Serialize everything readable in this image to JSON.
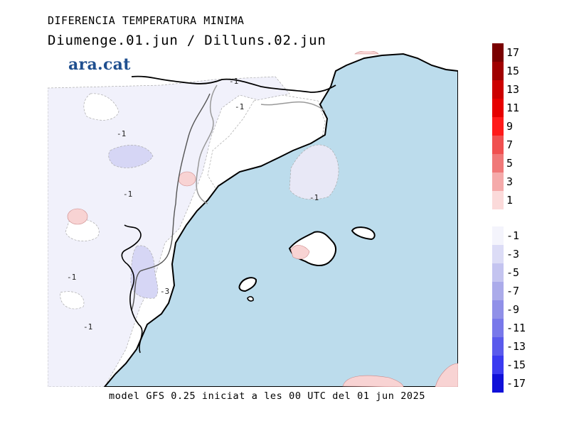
{
  "header": {
    "title": "DIFERENCIA TEMPERATURA MINIMA",
    "subtitle": "Diumenge.01.jun / Dilluns.02.jun",
    "brand": "ara.cat"
  },
  "footer": {
    "model_info": "model GFS 0.25 iniciat a les 00 UTC del 01 jun 2025"
  },
  "map": {
    "sea_color": "#bcdcec",
    "land_color": "#ffffff",
    "contour_labels": [
      "-1",
      "-1",
      "-1",
      "-1",
      "-1",
      "-1",
      "-1",
      "-3"
    ]
  },
  "legend": {
    "positive": [
      {
        "label": "17",
        "color": "#7a0000"
      },
      {
        "label": "15",
        "color": "#a00000"
      },
      {
        "label": "13",
        "color": "#cc0000"
      },
      {
        "label": "11",
        "color": "#e60000"
      },
      {
        "label": "9",
        "color": "#ff1a1a"
      },
      {
        "label": "7",
        "color": "#f05050"
      },
      {
        "label": "5",
        "color": "#f07878"
      },
      {
        "label": "3",
        "color": "#f5aaaa"
      },
      {
        "label": "1",
        "color": "#fbdada"
      }
    ],
    "negative": [
      {
        "label": "-1",
        "color": "#f4f4fc"
      },
      {
        "label": "-3",
        "color": "#dcdcf6"
      },
      {
        "label": "-5",
        "color": "#c4c4f0"
      },
      {
        "label": "-7",
        "color": "#ababea"
      },
      {
        "label": "-9",
        "color": "#9090e8"
      },
      {
        "label": "-11",
        "color": "#7878ea"
      },
      {
        "label": "-13",
        "color": "#5a5aec"
      },
      {
        "label": "-15",
        "color": "#3a3af0"
      },
      {
        "label": "-17",
        "color": "#1010d8"
      }
    ]
  }
}
